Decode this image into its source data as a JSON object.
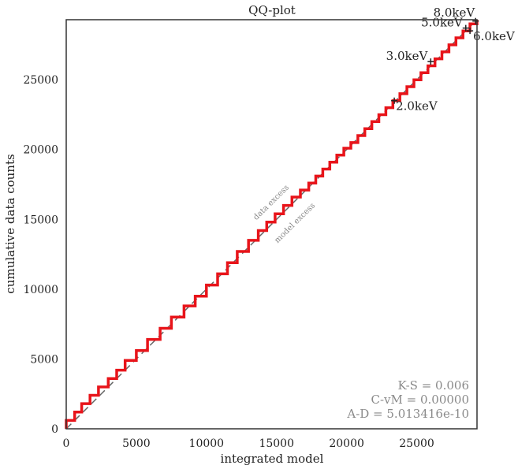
{
  "chart_data": {
    "type": "line",
    "title": "QQ-plot",
    "xlabel": "integrated model",
    "ylabel": "cumulative data counts",
    "xlim": [
      0,
      29300
    ],
    "ylim": [
      0,
      29300
    ],
    "grid": false,
    "x_ticks": [
      0,
      5000,
      10000,
      15000,
      20000,
      25000
    ],
    "y_ticks": [
      0,
      5000,
      10000,
      15000,
      20000,
      25000
    ],
    "reference_line": {
      "style": "dashed",
      "color": "#666666"
    },
    "series": [
      {
        "color": "#e8141a",
        "style": "steps",
        "steps": [
          [
            0,
            600
          ],
          [
            600,
            1200
          ],
          [
            1100,
            1800
          ],
          [
            1700,
            2400
          ],
          [
            2300,
            3000
          ],
          [
            3000,
            3600
          ],
          [
            3600,
            4200
          ],
          [
            4200,
            4900
          ],
          [
            5000,
            5600
          ],
          [
            5800,
            6400
          ],
          [
            6700,
            7200
          ],
          [
            7500,
            8000
          ],
          [
            8400,
            8800
          ],
          [
            9200,
            9500
          ],
          [
            10000,
            10300
          ],
          [
            10800,
            11100
          ],
          [
            11500,
            11900
          ],
          [
            12200,
            12700
          ],
          [
            13000,
            13500
          ],
          [
            13700,
            14200
          ],
          [
            14300,
            14800
          ],
          [
            14900,
            15400
          ],
          [
            15500,
            16000
          ],
          [
            16100,
            16600
          ],
          [
            16700,
            17100
          ],
          [
            17300,
            17600
          ],
          [
            17800,
            18100
          ],
          [
            18300,
            18600
          ],
          [
            18800,
            19100
          ],
          [
            19300,
            19600
          ],
          [
            19800,
            20100
          ],
          [
            20300,
            20500
          ],
          [
            20800,
            21000
          ],
          [
            21300,
            21500
          ],
          [
            21800,
            22000
          ],
          [
            22300,
            22500
          ],
          [
            22800,
            23000
          ],
          [
            23300,
            23500
          ],
          [
            23800,
            24000
          ],
          [
            24300,
            24500
          ],
          [
            24800,
            25000
          ],
          [
            25300,
            25500
          ],
          [
            25800,
            26000
          ],
          [
            26300,
            26500
          ],
          [
            26800,
            27000
          ],
          [
            27300,
            27500
          ],
          [
            27800,
            28000
          ],
          [
            28300,
            28500
          ],
          [
            28800,
            29000
          ],
          [
            29300,
            29300
          ]
        ]
      }
    ],
    "energy_markers": [
      {
        "label": "2.0keV",
        "x": 23400,
        "y": 23500,
        "anchor": "end-right"
      },
      {
        "label": "3.0keV",
        "x": 26000,
        "y": 26300,
        "anchor": "left"
      },
      {
        "label": "5.0keV",
        "x": 28500,
        "y": 28700,
        "anchor": "left"
      },
      {
        "label": "6.0keV",
        "x": 28800,
        "y": 28500,
        "anchor": "right"
      },
      {
        "label": "8.0keV",
        "x": 29200,
        "y": 29200,
        "anchor": "top-left"
      }
    ],
    "region_labels": {
      "above": "data excess",
      "below": "model excess"
    },
    "stats": [
      "K-S = 0.006",
      "C-vM = 0.00000",
      "A-D = 5.013416e-10"
    ]
  }
}
